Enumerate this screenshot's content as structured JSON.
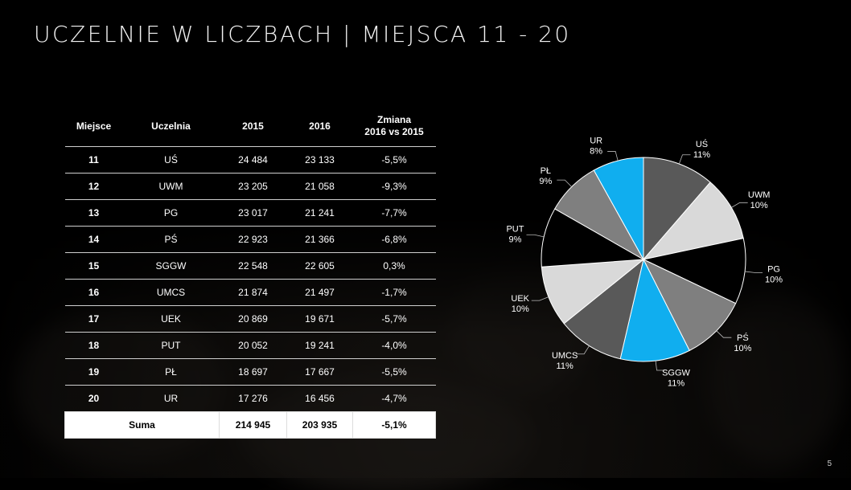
{
  "title": "UCZELNIE W LICZBACH | MIEJSCA 11 - 20",
  "page_number": "5",
  "table": {
    "headers": [
      "Miejsce",
      "Uczelnia",
      "2015",
      "2016",
      "Zmiana",
      "2016 vs 2015"
    ],
    "rows": [
      [
        "11",
        "UŚ",
        "24 484",
        "23 133",
        "-5,5%"
      ],
      [
        "12",
        "UWM",
        "23 205",
        "21 058",
        "-9,3%"
      ],
      [
        "13",
        "PG",
        "23 017",
        "21 241",
        "-7,7%"
      ],
      [
        "14",
        "PŚ",
        "22 923",
        "21 366",
        "-6,8%"
      ],
      [
        "15",
        "SGGW",
        "22 548",
        "22 605",
        "0,3%"
      ],
      [
        "16",
        "UMCS",
        "21 874",
        "21 497",
        "-1,7%"
      ],
      [
        "17",
        "UEK",
        "20 869",
        "19 671",
        "-5,7%"
      ],
      [
        "18",
        "PUT",
        "20 052",
        "19 241",
        "-4,0%"
      ],
      [
        "19",
        "PŁ",
        "18 697",
        "17 667",
        "-5,5%"
      ],
      [
        "20",
        "UR",
        "17 276",
        "16 456",
        "-4,7%"
      ]
    ],
    "sum": {
      "label": "Suma",
      "y2015": "214 945",
      "y2016": "203 935",
      "change": "-5,1%"
    }
  },
  "chart_data": {
    "type": "pie",
    "title": "",
    "categories": [
      "UŚ",
      "UWM",
      "PG",
      "PŚ",
      "SGGW",
      "UMCS",
      "UEK",
      "PUT",
      "PŁ",
      "UR"
    ],
    "values": [
      23133,
      21058,
      21241,
      21366,
      22605,
      21497,
      19671,
      19241,
      17667,
      16456
    ],
    "labels": [
      "11%",
      "10%",
      "10%",
      "10%",
      "11%",
      "11%",
      "10%",
      "9%",
      "9%",
      "8%"
    ],
    "colors": [
      "#595959",
      "#d9d9d9",
      "#000000",
      "#7f7f7f",
      "#10aeef",
      "#595959",
      "#d9d9d9",
      "#000000",
      "#7f7f7f",
      "#10aeef"
    ],
    "start": "top",
    "direction": "clockwise"
  }
}
